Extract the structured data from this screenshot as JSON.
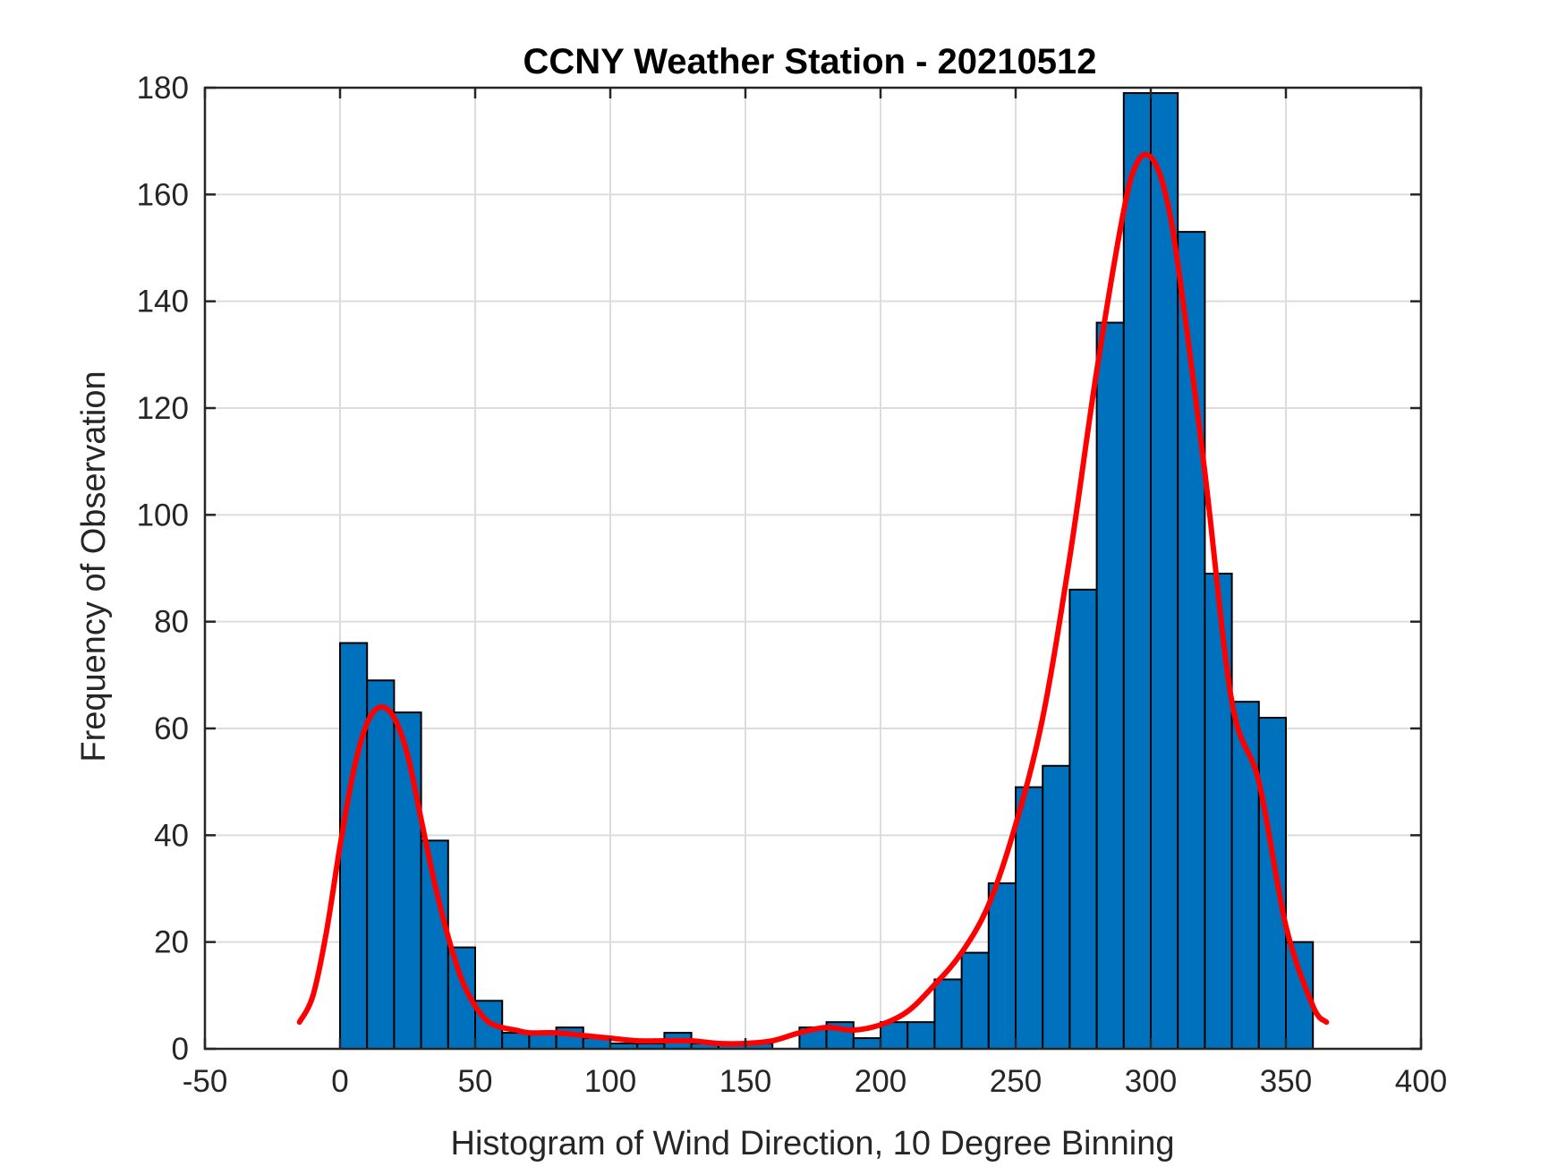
{
  "chart_data": {
    "type": "bar",
    "title": "CCNY Weather Station - 20210512",
    "xlabel": "Histogram of Wind Direction, 10 Degree Binning",
    "ylabel": "Frequency of Observation",
    "xlim": [
      -50,
      400
    ],
    "ylim": [
      0,
      180
    ],
    "xticks": [
      -50,
      0,
      50,
      100,
      150,
      200,
      250,
      300,
      350,
      400
    ],
    "yticks": [
      0,
      20,
      40,
      60,
      80,
      100,
      120,
      140,
      160,
      180
    ],
    "grid": true,
    "bin_width": 10,
    "bin_starts": [
      0,
      10,
      20,
      30,
      40,
      50,
      60,
      70,
      80,
      90,
      100,
      110,
      120,
      130,
      140,
      150,
      160,
      170,
      180,
      190,
      200,
      210,
      220,
      230,
      240,
      250,
      260,
      270,
      280,
      290,
      300,
      310,
      320,
      330,
      340,
      350
    ],
    "values": [
      76,
      69,
      63,
      39,
      19,
      9,
      3,
      3,
      4,
      2,
      1,
      1,
      3,
      1,
      1,
      1,
      0,
      4,
      5,
      2,
      5,
      5,
      13,
      18,
      31,
      49,
      53,
      86,
      136,
      179,
      179,
      153,
      89,
      65,
      62,
      20
    ],
    "bar_color": "#0072BD",
    "fit_curve": {
      "name": "density fit",
      "color": "#FF0000",
      "x": [
        -15,
        -10,
        -5,
        0,
        5,
        10,
        15,
        20,
        25,
        30,
        35,
        40,
        45,
        50,
        55,
        60,
        65,
        70,
        80,
        90,
        100,
        110,
        120,
        130,
        140,
        150,
        160,
        170,
        180,
        190,
        200,
        210,
        220,
        230,
        240,
        250,
        260,
        270,
        280,
        290,
        295,
        300,
        305,
        310,
        320,
        330,
        340,
        350,
        360,
        365
      ],
      "y": [
        5,
        10,
        22,
        38,
        52,
        61,
        64,
        62,
        55,
        43,
        31,
        21,
        13,
        8,
        5,
        4,
        3.5,
        3,
        3,
        2.5,
        2,
        1.5,
        1.5,
        1.5,
        1,
        1,
        1.5,
        3,
        4,
        3.5,
        4.5,
        7,
        12,
        18,
        27,
        42,
        62,
        92,
        127,
        157,
        166,
        167,
        161,
        147,
        108,
        65,
        50,
        23,
        8,
        5
      ]
    }
  }
}
